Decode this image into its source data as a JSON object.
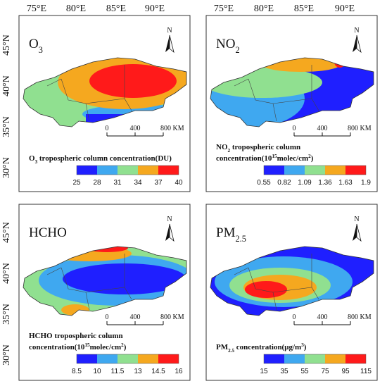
{
  "lon_labels": [
    "75°E",
    "80°E",
    "85°E",
    "90°E"
  ],
  "lat_labels": [
    "45°N",
    "40°N",
    "35°N",
    "30°N"
  ],
  "north": "N",
  "scale_labels": [
    "0",
    "400",
    "800 KM"
  ],
  "panels": [
    {
      "title": [
        {
          "text": "O"
        },
        {
          "text": "3",
          "style": "sub"
        }
      ],
      "legend_title": [
        [
          {
            "text": "O"
          },
          {
            "text": "3",
            "style": "sub"
          },
          {
            "text": " tropospheric column concentration(DU)"
          }
        ]
      ],
      "legend_ticks": [
        25,
        28,
        31,
        34,
        37,
        40
      ],
      "colors": [
        "#1f1fff",
        "#3fa8f0",
        "#90e090",
        "#f5a81f",
        "#ff1a1a"
      ]
    },
    {
      "title": [
        {
          "text": "NO"
        },
        {
          "text": "2",
          "style": "sub"
        }
      ],
      "legend_title": [
        [
          {
            "text": "NO"
          },
          {
            "text": "2",
            "style": "sub"
          },
          {
            "text": " tropospheric column"
          }
        ],
        [
          {
            "text": "concentration(10"
          },
          {
            "text": "15",
            "style": "sup"
          },
          {
            "text": "molec/cm"
          },
          {
            "text": "2",
            "style": "sup"
          },
          {
            "text": ")"
          }
        ]
      ],
      "legend_ticks": [
        0.55,
        0.82,
        1.09,
        1.36,
        1.63,
        1.9
      ],
      "colors": [
        "#1f1fff",
        "#3fa8f0",
        "#90e090",
        "#f5a81f",
        "#ff1a1a"
      ]
    },
    {
      "title": [
        {
          "text": "HCHO"
        }
      ],
      "legend_title": [
        [
          {
            "text": "HCHO tropospheric column"
          }
        ],
        [
          {
            "text": "concentration(10"
          },
          {
            "text": "15",
            "style": "sup"
          },
          {
            "text": "molec/cm"
          },
          {
            "text": "2",
            "style": "sup"
          },
          {
            "text": ")"
          }
        ]
      ],
      "legend_ticks": [
        8.5,
        10,
        11.5,
        13,
        14.5,
        16
      ],
      "colors": [
        "#1f1fff",
        "#3fa8f0",
        "#90e090",
        "#f5a81f",
        "#ff1a1a"
      ]
    },
    {
      "title": [
        {
          "text": "PM"
        },
        {
          "text": "2.5",
          "style": "sub"
        }
      ],
      "legend_title": [
        [
          {
            "text": "PM"
          },
          {
            "text": "2.5",
            "style": "sub"
          },
          {
            "text": " concentration(μg/m"
          },
          {
            "text": "3",
            "style": "sup"
          },
          {
            "text": ")"
          }
        ]
      ],
      "legend_ticks": [
        15,
        35,
        55,
        75,
        95,
        115
      ],
      "colors": [
        "#1f1fff",
        "#3fa8f0",
        "#90e090",
        "#f5a81f",
        "#ff1a1a"
      ]
    }
  ]
}
